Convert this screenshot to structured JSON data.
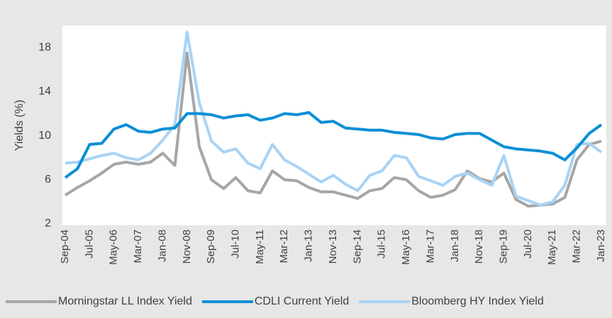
{
  "chart_data": {
    "type": "line",
    "y_label": "Yields (%)",
    "categories": [
      "Sep-04",
      null,
      "Jul-05",
      null,
      "May-06",
      null,
      "Mar-07",
      null,
      "Jan-08",
      null,
      "Nov-08",
      null,
      "Sep-09",
      null,
      "Jul-10",
      null,
      "May-11",
      null,
      "Mar-12",
      null,
      "Jan-13",
      null,
      "Nov-13",
      null,
      "Sep-14",
      null,
      "Jul-15",
      null,
      "May-16",
      null,
      "Mar-17",
      null,
      "Jan-18",
      null,
      "Nov-18",
      null,
      "Sep-19",
      null,
      "Jul-20",
      null,
      "May-21",
      null,
      "Mar-22",
      null,
      "Jan-23"
    ],
    "series": [
      {
        "name": "Morningstar LL Index Yield",
        "color": "#a6a6a6",
        "values": [
          4.6,
          5.3,
          5.9,
          6.6,
          7.4,
          7.6,
          7.4,
          7.6,
          8.4,
          7.3,
          17.5,
          9.0,
          6.0,
          5.2,
          6.2,
          5.0,
          4.8,
          6.8,
          6.0,
          5.9,
          5.3,
          4.9,
          4.9,
          4.6,
          4.3,
          5.0,
          5.2,
          6.2,
          6.0,
          5.0,
          4.4,
          4.6,
          5.1,
          6.8,
          6.1,
          5.8,
          6.6,
          4.2,
          3.6,
          3.7,
          3.8,
          4.4,
          7.8,
          9.2,
          9.5
        ]
      },
      {
        "name": "CDLI Current Yield",
        "color": "#0b8fd6",
        "values": [
          6.2,
          7.0,
          9.2,
          9.3,
          10.6,
          11.0,
          10.4,
          10.3,
          10.6,
          10.7,
          12.0,
          12.0,
          11.9,
          11.6,
          11.8,
          11.9,
          11.4,
          11.6,
          12.0,
          11.9,
          12.1,
          11.2,
          11.3,
          10.7,
          10.6,
          10.5,
          10.5,
          10.3,
          10.2,
          10.1,
          9.8,
          9.7,
          10.1,
          10.2,
          10.2,
          9.6,
          9.0,
          8.8,
          8.7,
          8.6,
          8.4,
          7.8,
          8.9,
          10.2,
          11.0
        ]
      },
      {
        "name": "Bloomberg HY Index Yield",
        "color": "#a9d3f5",
        "values": [
          7.5,
          7.6,
          7.9,
          8.2,
          8.4,
          8.0,
          7.8,
          8.4,
          9.6,
          11.0,
          19.4,
          13.0,
          9.5,
          8.5,
          8.8,
          7.5,
          7.0,
          9.2,
          7.8,
          7.2,
          6.5,
          5.8,
          6.4,
          5.6,
          5.0,
          6.4,
          6.8,
          8.2,
          8.0,
          6.3,
          5.9,
          5.5,
          6.3,
          6.6,
          6.0,
          5.5,
          8.2,
          4.5,
          4.1,
          3.7,
          4.0,
          5.5,
          9.2,
          9.3,
          8.5
        ]
      }
    ],
    "ylim": [
      2,
      20
    ],
    "yticks": [
      2,
      6,
      10,
      14,
      18
    ],
    "grid": false,
    "legend": "bottom"
  }
}
